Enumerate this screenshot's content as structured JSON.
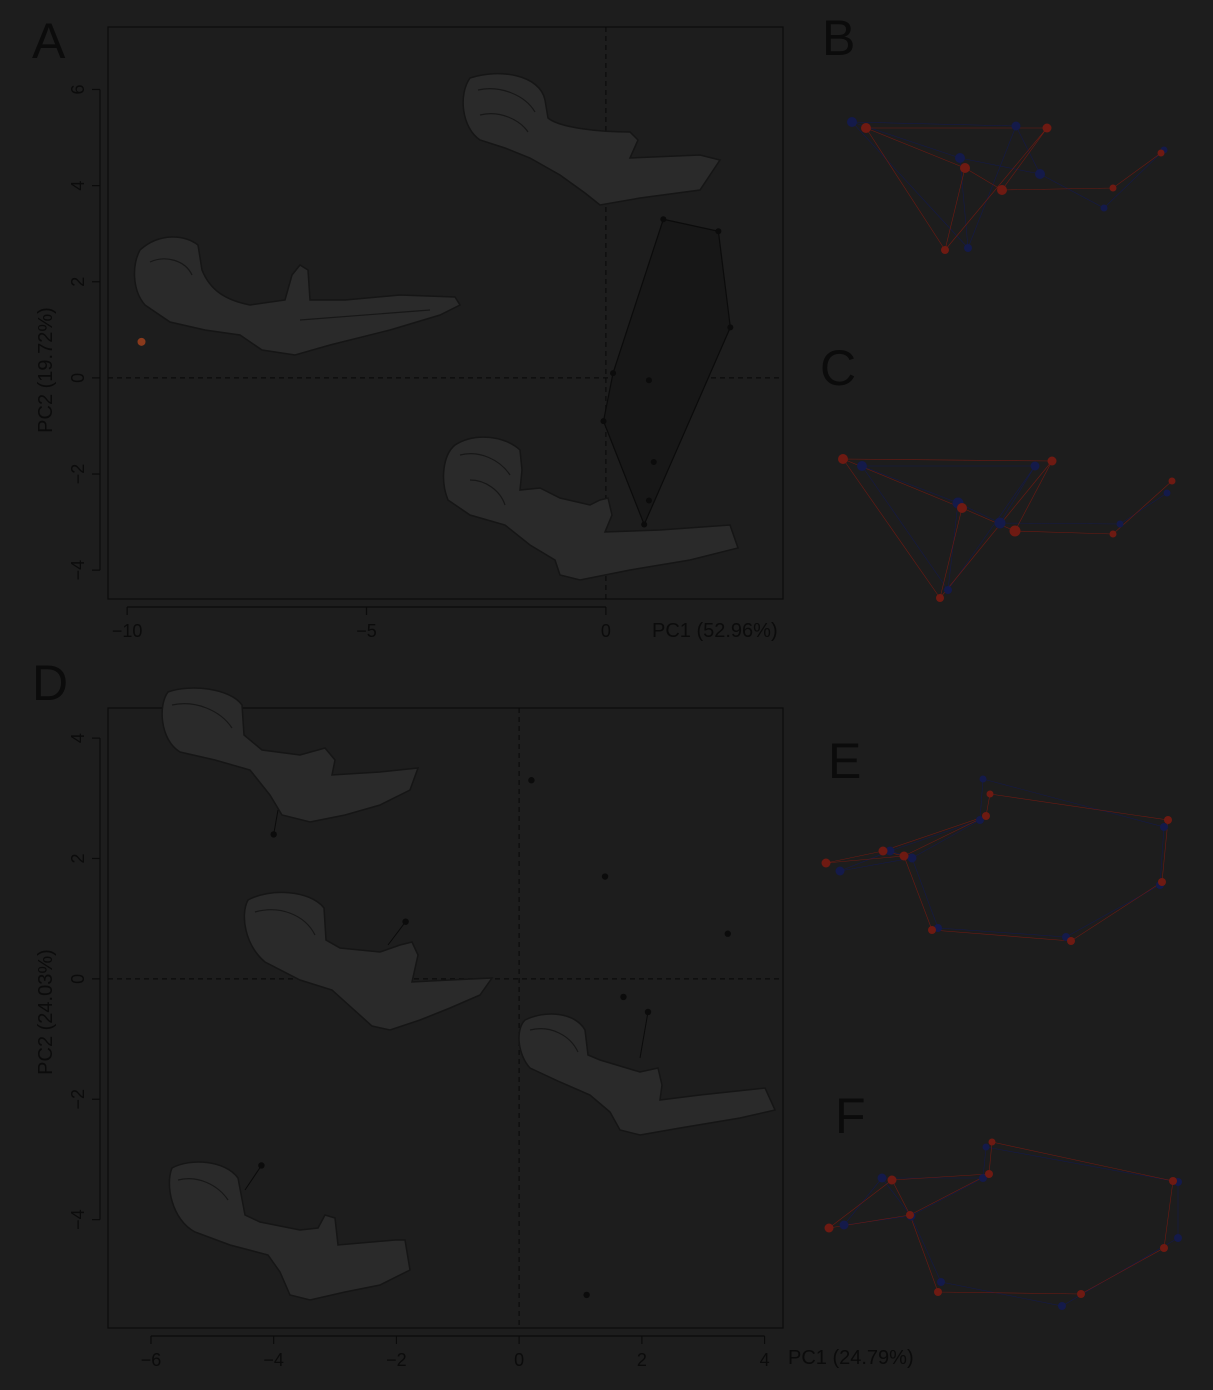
{
  "panels": {
    "A": {
      "letter": "A",
      "x_axis_label": "PC1 (52.96%)",
      "y_axis_label": "PC2 (19.72%)",
      "x_ticks": [
        "−10",
        "−5",
        "0"
      ],
      "y_ticks": [
        "6",
        "4",
        "2",
        "0",
        "−2",
        "−4"
      ]
    },
    "B": {
      "letter": "B"
    },
    "C": {
      "letter": "C"
    },
    "D": {
      "letter": "D",
      "x_axis_label": "PC1 (24.79%)",
      "y_axis_label": "PC2 (24.03%)",
      "x_ticks": [
        "−6",
        "−4",
        "−2",
        "0",
        "2",
        "4"
      ],
      "y_ticks": [
        "4",
        "2",
        "0",
        "−2",
        "−4"
      ]
    },
    "E": {
      "letter": "E"
    },
    "F": {
      "letter": "F"
    }
  },
  "chart_data": [
    {
      "type": "scatter",
      "panel": "A",
      "xlabel": "PC1 (52.96%)",
      "ylabel": "PC2 (19.72%)",
      "xlim": [
        -10.4,
        3.7
      ],
      "ylim": [
        -4.6,
        7.3
      ],
      "x_ticks": [
        -10,
        -5,
        0
      ],
      "y_ticks": [
        -4,
        -2,
        0,
        2,
        4,
        6
      ],
      "reference_lines": {
        "x": 0,
        "y": 0
      },
      "outlier": {
        "x": -9.7,
        "y": 0.75,
        "color": "#8a3a1c"
      },
      "points": [
        {
          "x": 1.2,
          "y": 3.3
        },
        {
          "x": 2.35,
          "y": 3.05
        },
        {
          "x": 2.6,
          "y": 1.05
        },
        {
          "x": 0.15,
          "y": 0.1
        },
        {
          "x": 0.9,
          "y": -0.05
        },
        {
          "x": -0.05,
          "y": -0.9
        },
        {
          "x": 1.0,
          "y": -1.75
        },
        {
          "x": 0.9,
          "y": -2.55
        },
        {
          "x": 0.8,
          "y": -3.05
        }
      ],
      "hull": [
        {
          "x": 1.2,
          "y": 3.3
        },
        {
          "x": 2.35,
          "y": 3.05
        },
        {
          "x": 2.6,
          "y": 1.05
        },
        {
          "x": 0.8,
          "y": -3.05
        },
        {
          "x": -0.05,
          "y": -0.9
        },
        {
          "x": 0.15,
          "y": 0.1
        }
      ]
    },
    {
      "type": "scatter",
      "panel": "D",
      "xlabel": "PC1 (24.79%)",
      "ylabel": "PC2 (24.03%)",
      "xlim": [
        -6.7,
        4.3
      ],
      "ylim": [
        -5.8,
        4.5
      ],
      "x_ticks": [
        -6,
        -4,
        -2,
        0,
        2,
        4
      ],
      "y_ticks": [
        -4,
        -2,
        0,
        2,
        4
      ],
      "reference_lines": {
        "x": 0,
        "y": 0
      },
      "points": [
        {
          "x": 0.2,
          "y": 3.3
        },
        {
          "x": -4.0,
          "y": 2.4
        },
        {
          "x": 1.4,
          "y": 1.7
        },
        {
          "x": -1.85,
          "y": 0.95
        },
        {
          "x": 3.4,
          "y": 0.75
        },
        {
          "x": 1.7,
          "y": -0.3
        },
        {
          "x": 2.1,
          "y": -0.55
        },
        {
          "x": -4.2,
          "y": -3.1
        },
        {
          "x": 1.1,
          "y": -5.25
        }
      ]
    }
  ],
  "colors": {
    "background": "#1d1d1d",
    "ink": "#0b0b0b",
    "hull_fill": "#171717",
    "landmark_red": "#6e1a12",
    "landmark_blue": "#141a4a"
  }
}
